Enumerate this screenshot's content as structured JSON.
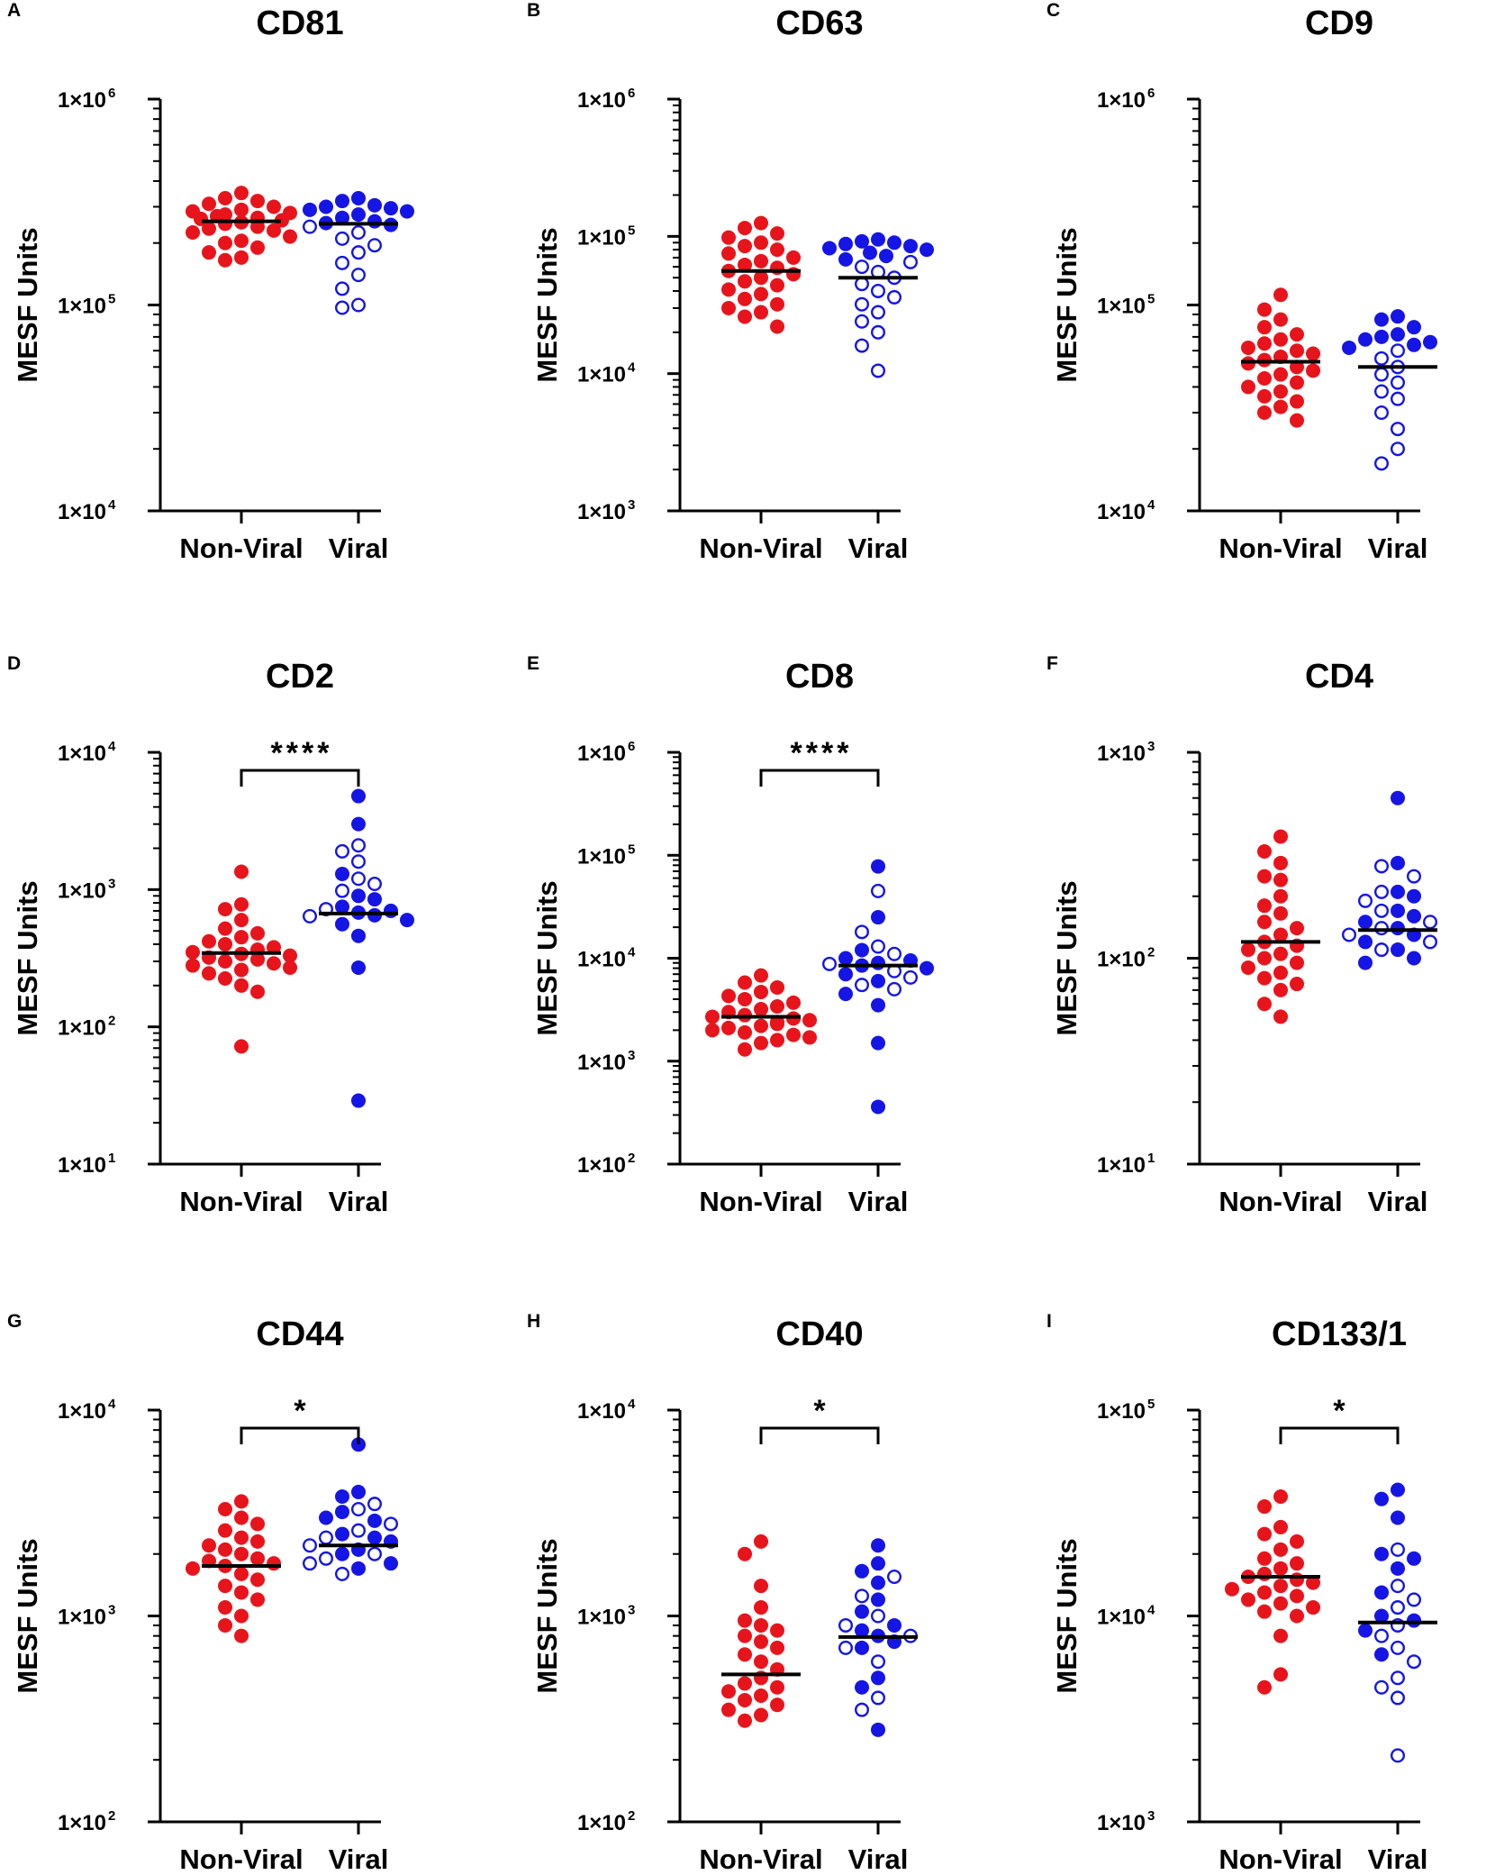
{
  "colors": {
    "non_viral": "#e8141c",
    "viral": "#1515e6",
    "axis": "#000000"
  },
  "chart_data": [
    {
      "panel": "A",
      "type": "scatter",
      "title": "CD81",
      "ylabel": "MESF Units",
      "yscale": "log",
      "ylim_exp": [
        4,
        6
      ],
      "ticks": [
        "1×10",
        "1×10",
        "1×10"
      ],
      "tick_exponents": [
        "4",
        "5",
        "6"
      ],
      "categories": [
        "Non-Viral",
        "Viral"
      ],
      "significance": "",
      "series": [
        {
          "name": "Non-Viral",
          "filled": [
            350000,
            330000,
            320000,
            310000,
            300000,
            290000,
            285000,
            280000,
            275000,
            270000,
            265000,
            262000,
            258000,
            252000,
            248000,
            240000,
            235000,
            230000,
            225000,
            215000,
            205000,
            200000,
            190000,
            180000,
            170000,
            165000
          ],
          "open": [],
          "median": 255000
        },
        {
          "name": "Viral",
          "filled": [
            330000,
            320000,
            305000,
            300000,
            295000,
            290000,
            285000,
            275000,
            265000,
            255000,
            250000,
            245000
          ],
          "open": [
            240000,
            225000,
            210000,
            195000,
            180000,
            160000,
            140000,
            120000,
            100000,
            97000
          ],
          "median": 248000
        }
      ]
    },
    {
      "panel": "B",
      "type": "scatter",
      "title": "CD63",
      "ylabel": "MESF Units",
      "yscale": "log",
      "ylim_exp": [
        3,
        6
      ],
      "ticks": [
        "1×10",
        "1×10",
        "1×10",
        "1×10"
      ],
      "tick_exponents": [
        "3",
        "4",
        "5",
        "6"
      ],
      "categories": [
        "Non-Viral",
        "Viral"
      ],
      "significance": "",
      "series": [
        {
          "name": "Non-Viral",
          "filled": [
            125000,
            115000,
            105000,
            98000,
            90000,
            85000,
            80000,
            75000,
            70000,
            66000,
            62000,
            59000,
            56000,
            53000,
            50000,
            47000,
            44000,
            41000,
            38000,
            35000,
            32000,
            30000,
            28000,
            26000,
            22000
          ],
          "open": [],
          "median": 56000
        },
        {
          "name": "Viral",
          "filled": [
            95000,
            92000,
            90000,
            88000,
            85000,
            82000,
            80000,
            76000,
            72000,
            68000
          ],
          "open": [
            65000,
            60000,
            55000,
            50000,
            45000,
            40000,
            36000,
            32000,
            28000,
            24000,
            20000,
            16000,
            10500
          ],
          "median": 50000
        }
      ]
    },
    {
      "panel": "C",
      "type": "scatter",
      "title": "CD9",
      "ylabel": "MESF Units",
      "yscale": "log",
      "ylim_exp": [
        4,
        6
      ],
      "ticks": [
        "1×10",
        "1×10",
        "1×10"
      ],
      "tick_exponents": [
        "4",
        "5",
        "6"
      ],
      "categories": [
        "Non-Viral",
        "Viral"
      ],
      "significance": "",
      "series": [
        {
          "name": "Non-Viral",
          "filled": [
            112000,
            95000,
            85000,
            78000,
            72000,
            68000,
            65000,
            62000,
            60000,
            58000,
            56000,
            54000,
            52000,
            50000,
            48000,
            46000,
            44000,
            42000,
            40000,
            38000,
            36000,
            34000,
            32000,
            30000,
            27500
          ],
          "open": [],
          "median": 53000
        },
        {
          "name": "Viral",
          "filled": [
            88000,
            85000,
            78000,
            72000,
            70000,
            68000,
            66000,
            64000,
            62000
          ],
          "open": [
            60000,
            55000,
            50000,
            46000,
            42000,
            38000,
            35000,
            30000,
            25000,
            20000,
            17000
          ],
          "median": 50000
        }
      ]
    },
    {
      "panel": "D",
      "type": "scatter",
      "title": "CD2",
      "ylabel": "MESF Units",
      "yscale": "log",
      "ylim_exp": [
        1,
        4
      ],
      "ticks": [
        "1×10",
        "1×10",
        "1×10",
        "1×10"
      ],
      "tick_exponents": [
        "1",
        "2",
        "3",
        "4"
      ],
      "categories": [
        "Non-Viral",
        "Viral"
      ],
      "significance": "****",
      "series": [
        {
          "name": "Non-Viral",
          "filled": [
            1350,
            780,
            720,
            600,
            520,
            480,
            450,
            420,
            400,
            380,
            365,
            350,
            340,
            330,
            320,
            310,
            300,
            290,
            280,
            270,
            260,
            245,
            225,
            200,
            180,
            72
          ],
          "open": [],
          "median": 345
        },
        {
          "name": "Viral",
          "filled": [
            4800,
            3000,
            1300,
            900,
            850,
            750,
            700,
            680,
            650,
            600,
            560,
            460,
            270,
            29
          ],
          "open": [
            2100,
            1900,
            1600,
            1200,
            1100,
            980,
            720,
            640
          ],
          "median": 670
        }
      ]
    },
    {
      "panel": "E",
      "type": "scatter",
      "title": "CD8",
      "ylabel": "MESF Units",
      "yscale": "log",
      "ylim_exp": [
        2,
        6
      ],
      "ticks": [
        "1×10",
        "1×10",
        "1×10",
        "1×10",
        "1×10"
      ],
      "tick_exponents": [
        "2",
        "3",
        "4",
        "5",
        "6"
      ],
      "categories": [
        "Non-Viral",
        "Viral"
      ],
      "significance": "****",
      "series": [
        {
          "name": "Non-Viral",
          "filled": [
            6800,
            5800,
            5200,
            4700,
            4300,
            4000,
            3700,
            3400,
            3200,
            3000,
            2800,
            2700,
            2600,
            2500,
            2400,
            2300,
            2200,
            2100,
            2000,
            1900,
            1800,
            1700,
            1600,
            1500,
            1300
          ],
          "open": [],
          "median": 2700
        },
        {
          "name": "Viral",
          "filled": [
            78000,
            25000,
            12000,
            10000,
            9500,
            9000,
            8500,
            8000,
            7000,
            6000,
            4500,
            3500,
            1500,
            360
          ],
          "open": [
            45000,
            18000,
            13000,
            11000,
            8800,
            7500,
            6500,
            5500,
            5000
          ],
          "median": 8500
        }
      ]
    },
    {
      "panel": "F",
      "type": "scatter",
      "title": "CD4",
      "ylabel": "MESF Units",
      "yscale": "log",
      "ylim_exp": [
        1,
        3
      ],
      "ticks": [
        "1×10",
        "1×10",
        "1×10"
      ],
      "tick_exponents": [
        "1",
        "2",
        "3"
      ],
      "categories": [
        "Non-Viral",
        "Viral"
      ],
      "significance": "",
      "series": [
        {
          "name": "Non-Viral",
          "filled": [
            390,
            330,
            290,
            250,
            240,
            200,
            180,
            165,
            150,
            140,
            130,
            120,
            115,
            110,
            105,
            100,
            95,
            90,
            85,
            80,
            75,
            70,
            60,
            52
          ],
          "open": [],
          "median": 120
        },
        {
          "name": "Viral",
          "filled": [
            600,
            290,
            210,
            200,
            170,
            160,
            150,
            140,
            130,
            120,
            110,
            100,
            95
          ],
          "open": [
            280,
            250,
            210,
            190,
            170,
            150,
            140,
            130,
            120,
            110
          ],
          "median": 137
        }
      ]
    },
    {
      "panel": "G",
      "type": "scatter",
      "title": "CD44",
      "ylabel": "MESF Units",
      "yscale": "log",
      "ylim_exp": [
        2,
        4
      ],
      "ticks": [
        "1×10",
        "1×10",
        "1×10"
      ],
      "tick_exponents": [
        "2",
        "3",
        "4"
      ],
      "categories": [
        "Non-Viral",
        "Viral"
      ],
      "significance": "*",
      "series": [
        {
          "name": "Non-Viral",
          "filled": [
            3600,
            3300,
            3000,
            2800,
            2600,
            2400,
            2300,
            2200,
            2100,
            2000,
            1900,
            1850,
            1800,
            1750,
            1700,
            1600,
            1500,
            1400,
            1300,
            1200,
            1100,
            1000,
            900,
            800
          ],
          "open": [],
          "median": 1750
        },
        {
          "name": "Viral",
          "filled": [
            6800,
            4000,
            3800,
            3200,
            3000,
            2900,
            2500,
            2400,
            2300,
            2100,
            2000,
            1800,
            1700
          ],
          "open": [
            3500,
            3300,
            2800,
            2600,
            2400,
            2200,
            2000,
            1900,
            1800,
            1600
          ],
          "median": 2200
        }
      ]
    },
    {
      "panel": "H",
      "type": "scatter",
      "title": "CD40",
      "ylabel": "MESF Units",
      "yscale": "log",
      "ylim_exp": [
        2,
        4
      ],
      "ticks": [
        "1×10",
        "1×10",
        "1×10"
      ],
      "tick_exponents": [
        "2",
        "3",
        "4"
      ],
      "categories": [
        "Non-Viral",
        "Viral"
      ],
      "significance": "*",
      "series": [
        {
          "name": "Non-Viral",
          "filled": [
            2300,
            2000,
            1400,
            1100,
            950,
            900,
            850,
            800,
            750,
            700,
            650,
            600,
            550,
            500,
            470,
            450,
            430,
            410,
            390,
            370,
            350,
            330,
            310
          ],
          "open": [],
          "median": 520
        },
        {
          "name": "Viral",
          "filled": [
            2200,
            1800,
            1650,
            1450,
            1200,
            1050,
            900,
            850,
            800,
            750,
            700,
            500,
            450,
            280
          ],
          "open": [
            1550,
            1250,
            1000,
            900,
            800,
            700,
            600,
            400,
            350
          ],
          "median": 790
        }
      ]
    },
    {
      "panel": "I",
      "type": "scatter",
      "title": "CD133/1",
      "ylabel": "MESF Units",
      "yscale": "log",
      "ylim_exp": [
        3,
        5
      ],
      "ticks": [
        "1×10",
        "1×10",
        "1×10"
      ],
      "tick_exponents": [
        "3",
        "4",
        "5"
      ],
      "categories": [
        "Non-Viral",
        "Viral"
      ],
      "significance": "*",
      "series": [
        {
          "name": "Non-Viral",
          "filled": [
            38000,
            34000,
            27000,
            25000,
            23000,
            21000,
            19000,
            18000,
            17000,
            16000,
            15500,
            15000,
            14500,
            14000,
            13500,
            13000,
            12500,
            12000,
            11500,
            11000,
            10500,
            10000,
            8000,
            5200,
            4500
          ],
          "open": [],
          "median": 15500
        },
        {
          "name": "Viral",
          "filled": [
            41000,
            37000,
            30000,
            20000,
            19000,
            17000,
            13000,
            10000,
            9500,
            8500,
            6500
          ],
          "open": [
            21000,
            14000,
            12000,
            11000,
            9000,
            8000,
            7000,
            6000,
            5000,
            4500,
            4000,
            2100
          ],
          "median": 9300
        }
      ]
    }
  ]
}
